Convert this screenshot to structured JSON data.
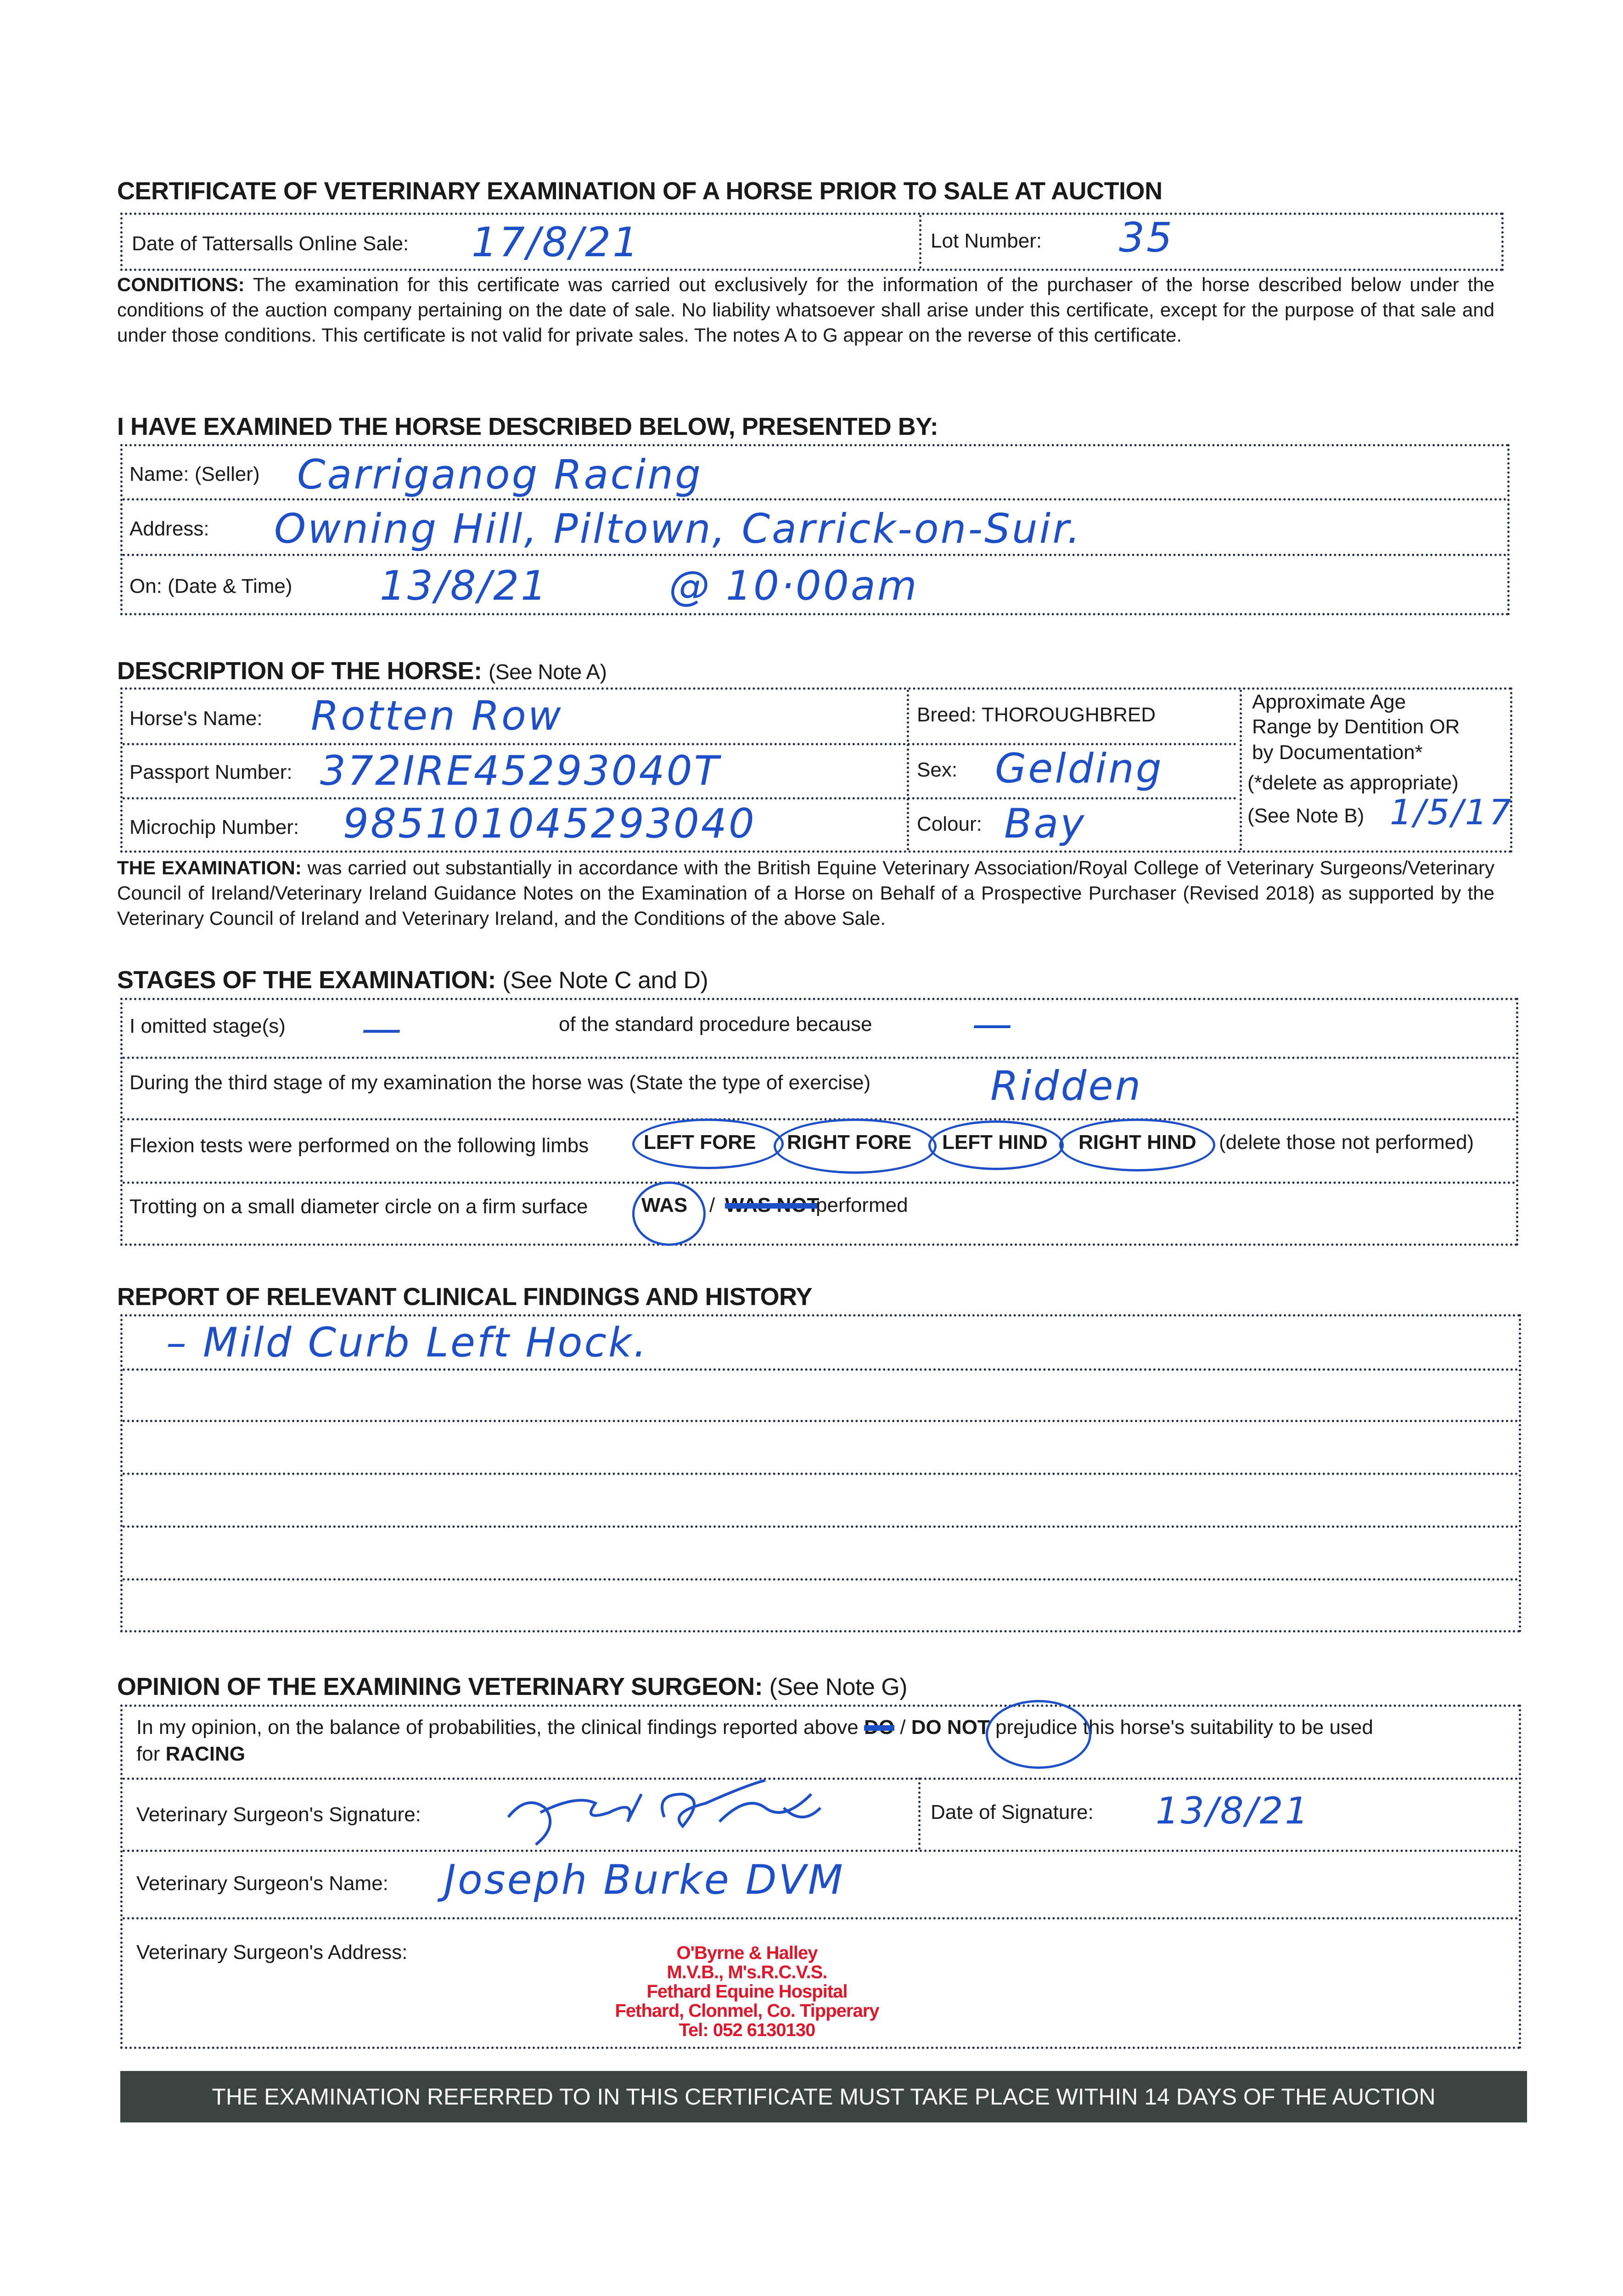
{
  "title": "CERTIFICATE OF VETERINARY EXAMINATION OF A HORSE PRIOR TO SALE AT AUCTION",
  "sale": {
    "date_label": "Date of Tattersalls Online Sale:",
    "date_value": "17/8/21",
    "lot_label": "Lot Number:",
    "lot_value": "35"
  },
  "conditions": {
    "label": "CONDITIONS:",
    "text": " The examination for this certificate was carried out exclusively for the information of the purchaser of the horse described below under the conditions of the auction company pertaining on the date of sale. No liability whatsoever shall arise under this certificate, except for the purpose of that sale and under those conditions. This certificate is not valid for private sales. The notes A to G appear on the reverse of this certificate."
  },
  "presented": {
    "heading": "I HAVE EXAMINED THE HORSE DESCRIBED BELOW, PRESENTED BY:",
    "name_label": "Name: (Seller)",
    "name_value": "Carriganog Racing",
    "address_label": "Address:",
    "address_value": "Owning Hill, Piltown, Carrick-on-Suir.",
    "on_label": "On: (Date & Time)",
    "on_date": "13/8/21",
    "on_time": "@ 10·00am"
  },
  "description": {
    "heading": "DESCRIPTION OF THE HORSE:",
    "heading_note": "(See Note A)",
    "horse_name_label": "Horse's Name:",
    "horse_name_value": "Rotten Row",
    "passport_label": "Passport Number:",
    "passport_value": "372IRE45293040T",
    "microchip_label": "Microchip Number:",
    "microchip_value": "985101045293040",
    "breed_label": "Breed: THOROUGHBRED",
    "sex_label": "Sex:",
    "sex_value": "Gelding",
    "colour_label": "Colour:",
    "colour_value": "Bay",
    "age_line1": "Approximate Age",
    "age_line2": "Range by Dentition OR",
    "age_line3": "by Documentation*",
    "age_line4": "(*delete as appropriate)",
    "age_line5": "(See Note B)",
    "age_value": "1/5/17"
  },
  "examination": {
    "label": "THE EXAMINATION:",
    "text": " was carried out substantially in accordance with the British Equine Veterinary Association/Royal College of Veterinary Surgeons/Veterinary Council of Ireland/Veterinary Ireland Guidance Notes on the Examination of a Horse on Behalf of a Prospective Purchaser (Revised 2018) as supported by the Veterinary Council of Ireland and Veterinary Ireland, and the Conditions of the above Sale."
  },
  "stages": {
    "heading": "STAGES OF THE EXAMINATION:",
    "heading_note": "(See Note C and D)",
    "omitted_label": "I omitted stage(s)",
    "omitted_value": "—",
    "because_label": "of the standard procedure because",
    "because_value": "—",
    "third_stage_label": "During the third stage of my examination the horse was (State the type of exercise)",
    "third_stage_value": "Ridden",
    "flexion_label": "Flexion tests were performed on the following limbs",
    "limbs": [
      "LEFT FORE",
      "RIGHT FORE",
      "LEFT HIND",
      "RIGHT HIND"
    ],
    "flexion_suffix": "(delete those not performed)",
    "trotting_label": "Trotting on a small diameter circle on a firm surface",
    "was": "WAS",
    "was_not": "WAS NOT",
    "trotting_suffix": "performed"
  },
  "report": {
    "heading": "REPORT OF RELEVANT CLINICAL FINDINGS AND HISTORY",
    "lines": [
      "–   Mild Curb Left Hock.",
      "",
      "",
      "",
      "",
      ""
    ]
  },
  "opinion": {
    "heading": "OPINION OF THE EXAMINING VETERINARY SURGEON:",
    "heading_note": "(See Note G)",
    "text_before": "In my opinion, on the balance of probabilities, the clinical findings reported above ",
    "do": "DO",
    "do_not": "DO NOT",
    "text_after": " prejudice this horse's suitability to be used",
    "for_label": "for ",
    "for_value": "RACING",
    "signature_label": "Veterinary Surgeon's Signature:",
    "date_sig_label": "Date of Signature:",
    "date_sig_value": "13/8/21",
    "name_label": "Veterinary Surgeon's Name:",
    "name_value": "Joseph Burke DVM",
    "address_label": "Veterinary Surgeon's Address:",
    "stamp": [
      "O'Byrne & Halley",
      "M.V.B., M's.R.C.V.S.",
      "Fethard Equine Hospital",
      "Fethard, Clonmel, Co. Tipperary",
      "Tel: 052 6130130"
    ]
  },
  "banner": "THE EXAMINATION REFERRED TO IN THIS CERTIFICATE MUST TAKE PLACE WITHIN 14 DAYS OF THE AUCTION",
  "colors": {
    "ink": "#1d4fc8",
    "stamp": "#e0162b",
    "banner": "#3b4441"
  }
}
